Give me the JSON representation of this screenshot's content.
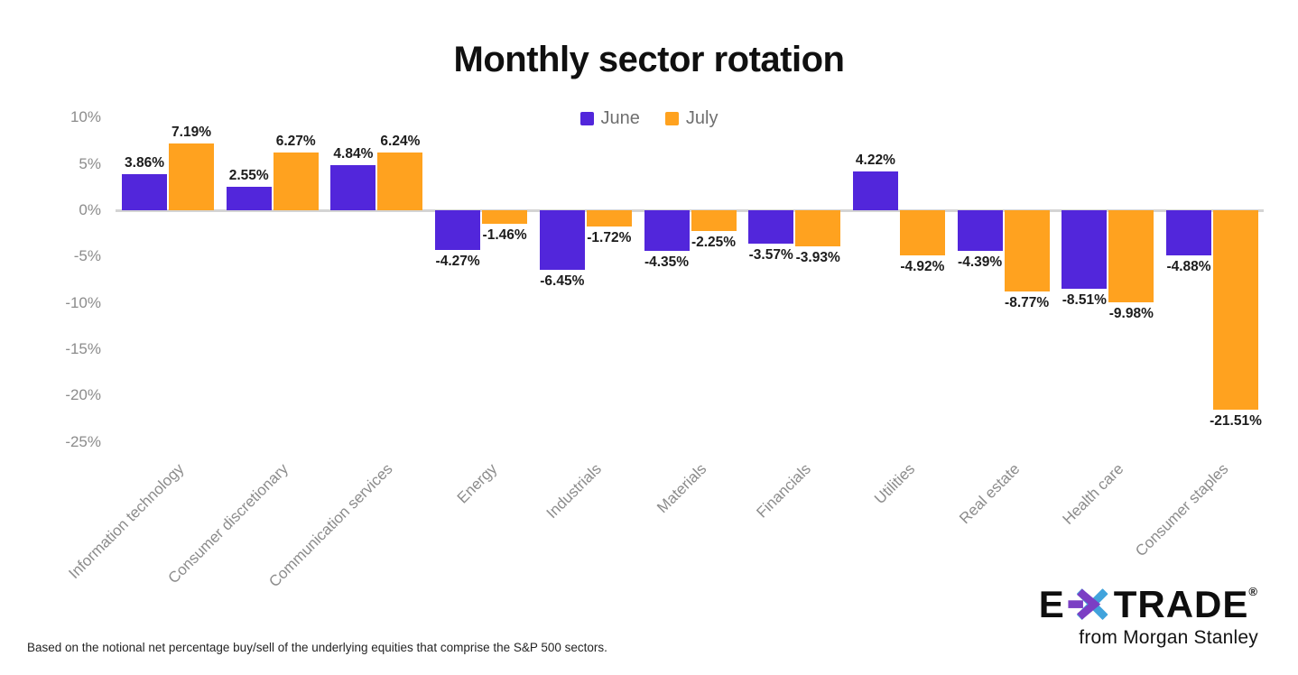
{
  "title": "Monthly sector rotation",
  "chart_data": {
    "type": "bar",
    "categories": [
      "Information technology",
      "Consumer discretionary",
      "Communication services",
      "Energy",
      "Industrials",
      "Materials",
      "Financials",
      "Utilities",
      "Real estate",
      "Health care",
      "Consumer staples"
    ],
    "series": [
      {
        "name": "June",
        "color": "#5226DB",
        "values": [
          3.86,
          2.55,
          4.84,
          -4.27,
          -6.45,
          -4.35,
          -3.57,
          4.22,
          -4.39,
          -8.51,
          -4.88
        ],
        "labels": [
          "3.86%",
          "2.55%",
          "4.84%",
          "-4.27%",
          "-6.45%",
          "-4.35%",
          "-3.57%",
          "4.22%",
          "-4.39%",
          "-8.51%",
          "-4.88%"
        ]
      },
      {
        "name": "July",
        "color": "#FFA21F",
        "values": [
          7.19,
          6.27,
          6.24,
          -1.46,
          -1.72,
          -2.25,
          -3.93,
          -4.92,
          -8.77,
          -9.98,
          -21.51
        ],
        "labels": [
          "7.19%",
          "6.27%",
          "6.24%",
          "-1.46%",
          "-1.72%",
          "-2.25%",
          "-3.93%",
          "-4.92%",
          "-8.77%",
          "-9.98%",
          "-21.51%"
        ]
      }
    ],
    "y_axis": {
      "ticks": [
        {
          "label": "10%",
          "value": 10
        },
        {
          "label": "5%",
          "value": 5
        },
        {
          "label": "0%",
          "value": 0
        },
        {
          "label": "-5%",
          "value": -5
        },
        {
          "label": "-10%",
          "value": -10
        },
        {
          "label": "-15%",
          "value": -15
        },
        {
          "label": "-20%",
          "value": -20
        },
        {
          "label": "-25%",
          "value": -25
        }
      ],
      "range": [
        -25,
        10
      ]
    },
    "grid": false,
    "legend_position": "top-center",
    "title": "Monthly sector rotation",
    "xlabel": "",
    "ylabel": ""
  },
  "footnote": "Based on the notional net percentage buy/sell of the underlying equities that comprise the S&P 500 sectors.",
  "logo": {
    "brand_prefix": "E",
    "brand_suffix": "TRADE",
    "registered_mark": "®",
    "tagline": "from Morgan Stanley",
    "colors": {
      "text_black": "#0e0e0e",
      "asterisk_purple": "#7B3FC4",
      "asterisk_blue": "#41A3DC"
    }
  }
}
